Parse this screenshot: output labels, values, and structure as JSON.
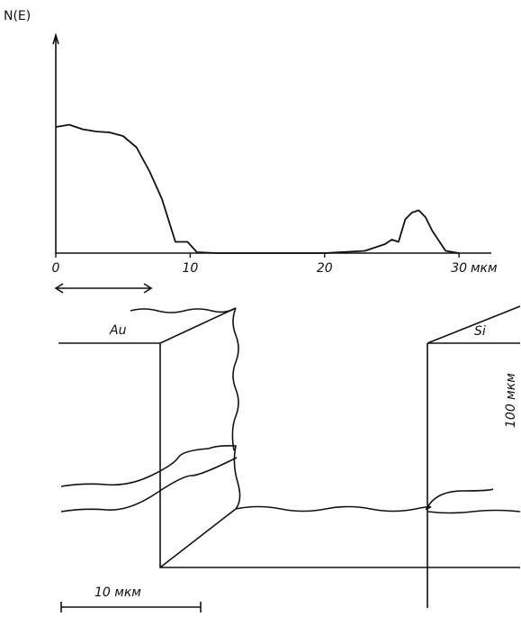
{
  "chart_data": {
    "type": "line",
    "y_label": "N(E)",
    "x_label": "мкм",
    "x": [
      0,
      1,
      2,
      3,
      4,
      5,
      6,
      7,
      7.9,
      8.9,
      9.8,
      10.5,
      12,
      20,
      23,
      24.5,
      25,
      25.5,
      26,
      26.5,
      27,
      27.5,
      28,
      29,
      30
    ],
    "series": [
      {
        "color": "#111111",
        "values": [
          2.8,
          2.85,
          2.75,
          2.7,
          2.68,
          2.6,
          2.35,
          1.8,
          1.2,
          0.25,
          0.25,
          0.02,
          0,
          0,
          0.05,
          0.2,
          0.3,
          0.25,
          0.75,
          0.9,
          0.95,
          0.8,
          0.5,
          0.05,
          0
        ]
      }
    ],
    "xlim": [
      0,
      32
    ],
    "xticks": [
      0,
      10,
      20,
      30
    ],
    "ylim": [
      0,
      5
    ]
  },
  "diagram": {
    "left_label": "Au",
    "right_label": "Si",
    "height_label": "100 мкм",
    "scale_label": "10 мкм"
  }
}
